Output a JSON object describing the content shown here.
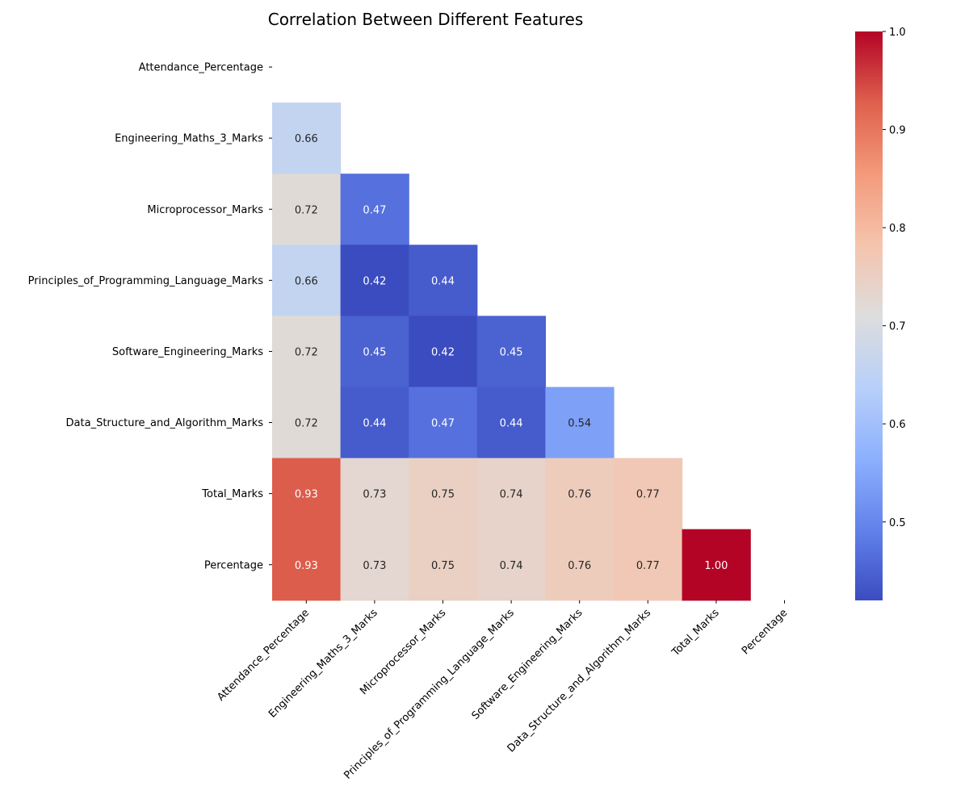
{
  "chart_data": {
    "type": "heatmap",
    "title": "Correlation Between Different Features",
    "labels": [
      "Attendance_Percentage",
      "Engineering_Maths_3_Marks",
      "Microprocessor_Marks",
      "Principles_of_Programming_Language_Marks",
      "Software_Engineering_Marks",
      "Data_Structure_and_Algorithm_Marks",
      "Total_Marks",
      "Percentage"
    ],
    "mask": "upper triangle including diagonal",
    "values": [
      [
        null,
        null,
        null,
        null,
        null,
        null,
        null,
        null
      ],
      [
        0.66,
        null,
        null,
        null,
        null,
        null,
        null,
        null
      ],
      [
        0.72,
        0.47,
        null,
        null,
        null,
        null,
        null,
        null
      ],
      [
        0.66,
        0.42,
        0.44,
        null,
        null,
        null,
        null,
        null
      ],
      [
        0.72,
        0.45,
        0.42,
        0.45,
        null,
        null,
        null,
        null
      ],
      [
        0.72,
        0.44,
        0.47,
        0.44,
        0.54,
        null,
        null,
        null
      ],
      [
        0.93,
        0.73,
        0.75,
        0.74,
        0.76,
        0.77,
        null,
        null
      ],
      [
        0.93,
        0.73,
        0.75,
        0.74,
        0.76,
        0.77,
        1.0,
        null
      ]
    ],
    "value_format": "0.00",
    "colormap": "coolwarm",
    "colorbar": {
      "vmin": 0.42,
      "vmax": 1.0,
      "ticks": [
        0.5,
        0.6,
        0.7,
        0.8,
        0.9,
        1.0
      ],
      "tick_labels": [
        "0.5",
        "0.6",
        "0.7",
        "0.8",
        "0.9",
        "1.0"
      ]
    },
    "grid": false,
    "xlabel": "",
    "ylabel": ""
  }
}
